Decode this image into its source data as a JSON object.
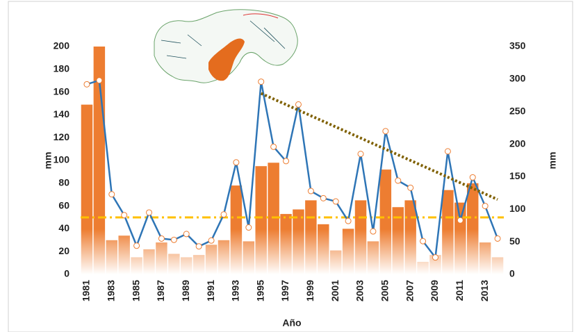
{
  "chart_data": {
    "type": "bar",
    "x_label": "Año",
    "y_label": "mm",
    "y2_label": "mm",
    "categories": [
      "1981",
      null,
      "1983",
      null,
      "1985",
      null,
      "1987",
      null,
      "1989",
      null,
      "1991",
      null,
      "1993",
      null,
      "1995",
      null,
      "1997",
      null,
      "1999",
      null,
      "2001",
      null,
      "2003",
      null,
      "2005",
      null,
      "2007",
      null,
      "2009",
      null,
      "2011",
      null,
      "2013",
      null
    ],
    "series": [
      {
        "type": "bar",
        "color": "#ed7d31",
        "axis": "y",
        "values": [
          149,
          200,
          30,
          34,
          15,
          22,
          28,
          18,
          15,
          17,
          26,
          30,
          78,
          29,
          95,
          98,
          53,
          57,
          65,
          44,
          21,
          40,
          65,
          29,
          92,
          59,
          65,
          11,
          17,
          74,
          63,
          80,
          28,
          15
        ]
      },
      {
        "type": "line",
        "color": "#2e75b6",
        "marker_color": "#ed7d31",
        "axis": "y2",
        "values": [
          292,
          298,
          123,
          91,
          44,
          95,
          55,
          53,
          62,
          43,
          52,
          92,
          172,
          72,
          296,
          196,
          174,
          261,
          128,
          117,
          112,
          82,
          185,
          66,
          220,
          144,
          133,
          51,
          26,
          189,
          83,
          149,
          105,
          55
        ]
      }
    ],
    "mean_line": {
      "value": 50,
      "axis": "y",
      "color": "#ffc000"
    },
    "trend_line": {
      "from_index": 14,
      "to_index": 33,
      "values": [
        278,
        115
      ],
      "axis": "y2",
      "color": "#7f6000"
    },
    "ylim": [
      0,
      200
    ],
    "yticks": [
      0,
      20,
      40,
      60,
      80,
      100,
      120,
      140,
      160,
      180,
      200
    ],
    "y2lim": [
      0,
      350
    ],
    "y2ticks": [
      0,
      50,
      100,
      150,
      200,
      250,
      300,
      350
    ],
    "grid": false
  }
}
